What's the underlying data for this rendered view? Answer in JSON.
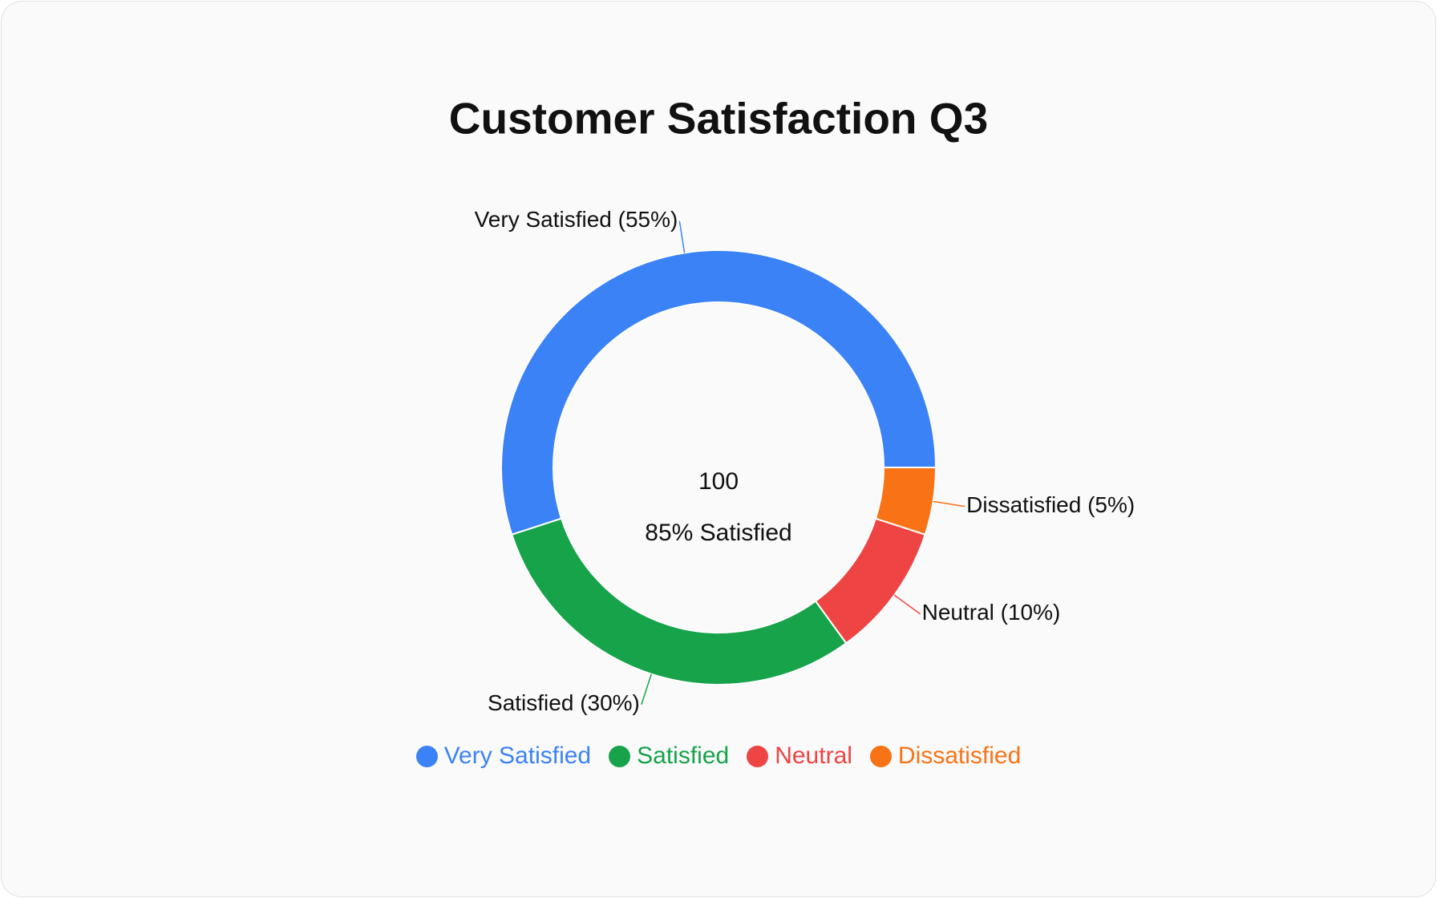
{
  "chart_data": {
    "type": "donut",
    "title": "Customer Satisfaction Q3",
    "categories": [
      "Very Satisfied",
      "Satisfied",
      "Neutral",
      "Dissatisfied"
    ],
    "values": [
      55,
      30,
      10,
      5
    ],
    "value_labels": [
      "Very Satisfied (55%)",
      "Satisfied (30%)",
      "Neutral (10%)",
      "Dissatisfied (5%)"
    ],
    "colors": [
      "#3b82f6",
      "#16a34a",
      "#ef4444",
      "#f97316"
    ],
    "center_value": 100,
    "center_label": "85% Satisfied",
    "legend": "bottom"
  }
}
